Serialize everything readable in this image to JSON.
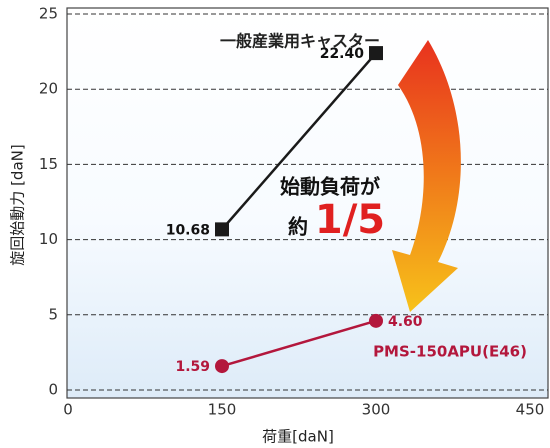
{
  "chart_data": {
    "type": "line",
    "x_label": "荷重[daN]",
    "y_label": "旋回始動力 [daN]",
    "x": [
      150,
      300
    ],
    "series": [
      {
        "name": "一般産業用キャスター",
        "color": "#1a1a1a",
        "marker": "square",
        "values": [
          10.68,
          22.4
        ],
        "value_labels": [
          "10.68",
          "22.40"
        ]
      },
      {
        "name": "PMS-150APU(E46)",
        "color": "#b3173c",
        "marker": "circle",
        "values": [
          1.59,
          4.6
        ],
        "value_labels": [
          "1.59",
          "4.60"
        ]
      }
    ],
    "annotations": [
      "始動負荷が",
      "約",
      "1/5"
    ],
    "xlim": [
      0,
      450
    ],
    "xticks": [
      0,
      150,
      300,
      450
    ],
    "ylim": [
      0,
      25
    ],
    "yticks": [
      0,
      5,
      10,
      15,
      20,
      25
    ],
    "grid": true
  }
}
